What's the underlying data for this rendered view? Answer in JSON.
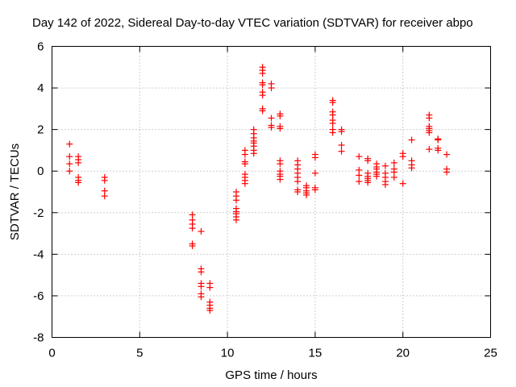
{
  "chart_data": {
    "type": "scatter",
    "title": "Day 142 of 2022, Sidereal Day-to-day VTEC variation (SDTVAR) for receiver abpo",
    "xlabel": "GPS time / hours",
    "ylabel": "SDTVAR / TECUs",
    "xlim": [
      0,
      25
    ],
    "ylim": [
      -8,
      6
    ],
    "xticks": [
      0,
      5,
      10,
      15,
      20,
      25
    ],
    "yticks": [
      -8,
      -6,
      -4,
      -2,
      0,
      2,
      4,
      6
    ],
    "grid": true,
    "marker": "+",
    "color": "#ff0000",
    "series": [
      {
        "name": "SDTVAR",
        "points": [
          [
            1.0,
            1.3
          ],
          [
            1.0,
            0.7
          ],
          [
            1.0,
            0.35
          ],
          [
            1.0,
            0.0
          ],
          [
            1.5,
            0.7
          ],
          [
            1.5,
            0.55
          ],
          [
            1.5,
            0.4
          ],
          [
            1.5,
            -0.3
          ],
          [
            1.5,
            -0.45
          ],
          [
            1.5,
            -0.55
          ],
          [
            3.0,
            -0.3
          ],
          [
            3.0,
            -0.45
          ],
          [
            3.0,
            -0.95
          ],
          [
            3.0,
            -1.2
          ],
          [
            8.0,
            -2.1
          ],
          [
            8.0,
            -2.35
          ],
          [
            8.0,
            -2.55
          ],
          [
            8.0,
            -2.75
          ],
          [
            8.0,
            -3.5
          ],
          [
            8.0,
            -3.6
          ],
          [
            8.5,
            -2.9
          ],
          [
            8.5,
            -4.7
          ],
          [
            8.5,
            -4.85
          ],
          [
            8.5,
            -5.4
          ],
          [
            8.5,
            -5.55
          ],
          [
            8.5,
            -5.9
          ],
          [
            8.5,
            -6.05
          ],
          [
            9.0,
            -5.4
          ],
          [
            9.0,
            -5.6
          ],
          [
            9.0,
            -6.3
          ],
          [
            9.0,
            -6.45
          ],
          [
            9.0,
            -6.6
          ],
          [
            9.0,
            -6.7
          ],
          [
            10.5,
            -1.0
          ],
          [
            10.5,
            -1.2
          ],
          [
            10.5,
            -1.4
          ],
          [
            10.5,
            -1.8
          ],
          [
            10.5,
            -1.95
          ],
          [
            10.5,
            -2.05
          ],
          [
            10.5,
            -2.2
          ],
          [
            10.5,
            -2.35
          ],
          [
            11.0,
            1.0
          ],
          [
            11.0,
            0.8
          ],
          [
            11.0,
            0.45
          ],
          [
            11.0,
            0.35
          ],
          [
            11.0,
            -0.15
          ],
          [
            11.0,
            -0.3
          ],
          [
            11.0,
            -0.45
          ],
          [
            11.0,
            -0.6
          ],
          [
            11.5,
            2.0
          ],
          [
            11.5,
            1.8
          ],
          [
            11.5,
            1.6
          ],
          [
            11.5,
            1.45
          ],
          [
            11.5,
            1.35
          ],
          [
            11.5,
            1.2
          ],
          [
            11.5,
            1.0
          ],
          [
            11.5,
            0.85
          ],
          [
            12.0,
            5.0
          ],
          [
            12.0,
            4.85
          ],
          [
            12.0,
            4.7
          ],
          [
            12.0,
            4.25
          ],
          [
            12.0,
            4.15
          ],
          [
            12.0,
            3.8
          ],
          [
            12.0,
            3.65
          ],
          [
            12.0,
            3.0
          ],
          [
            12.0,
            2.9
          ],
          [
            12.5,
            4.2
          ],
          [
            12.5,
            4.0
          ],
          [
            12.5,
            2.55
          ],
          [
            12.5,
            2.2
          ],
          [
            12.5,
            2.1
          ],
          [
            13.0,
            2.75
          ],
          [
            13.0,
            2.65
          ],
          [
            13.0,
            2.15
          ],
          [
            13.0,
            2.05
          ],
          [
            13.0,
            0.5
          ],
          [
            13.0,
            0.35
          ],
          [
            13.0,
            0.0
          ],
          [
            13.0,
            -0.15
          ],
          [
            13.0,
            -0.25
          ],
          [
            13.0,
            -0.4
          ],
          [
            14.0,
            0.5
          ],
          [
            14.0,
            0.3
          ],
          [
            14.0,
            0.1
          ],
          [
            14.0,
            -0.1
          ],
          [
            14.0,
            -0.3
          ],
          [
            14.0,
            -0.5
          ],
          [
            14.0,
            -0.9
          ],
          [
            14.0,
            -1.0
          ],
          [
            14.5,
            -0.7
          ],
          [
            14.5,
            -0.8
          ],
          [
            14.5,
            -0.95
          ],
          [
            14.5,
            -1.05
          ],
          [
            14.5,
            -1.15
          ],
          [
            15.0,
            0.8
          ],
          [
            15.0,
            0.65
          ],
          [
            15.0,
            -0.1
          ],
          [
            15.0,
            -0.8
          ],
          [
            15.0,
            -0.9
          ],
          [
            16.0,
            3.4
          ],
          [
            16.0,
            3.3
          ],
          [
            16.0,
            2.85
          ],
          [
            16.0,
            2.7
          ],
          [
            16.0,
            2.45
          ],
          [
            16.0,
            2.3
          ],
          [
            16.0,
            2.0
          ],
          [
            16.0,
            1.85
          ],
          [
            16.5,
            2.0
          ],
          [
            16.5,
            1.9
          ],
          [
            16.5,
            1.25
          ],
          [
            16.5,
            0.95
          ],
          [
            17.5,
            0.7
          ],
          [
            17.5,
            0.05
          ],
          [
            17.5,
            -0.2
          ],
          [
            17.5,
            -0.5
          ],
          [
            18.0,
            0.6
          ],
          [
            18.0,
            0.5
          ],
          [
            18.0,
            -0.1
          ],
          [
            18.0,
            -0.25
          ],
          [
            18.0,
            -0.35
          ],
          [
            18.0,
            -0.45
          ],
          [
            18.0,
            -0.55
          ],
          [
            18.5,
            0.35
          ],
          [
            18.5,
            0.2
          ],
          [
            18.5,
            0.1
          ],
          [
            18.5,
            -0.05
          ],
          [
            18.5,
            -0.15
          ],
          [
            18.5,
            -0.25
          ],
          [
            19.0,
            0.25
          ],
          [
            19.0,
            -0.1
          ],
          [
            19.0,
            -0.3
          ],
          [
            19.0,
            -0.5
          ],
          [
            19.0,
            -0.65
          ],
          [
            19.5,
            0.4
          ],
          [
            19.5,
            0.1
          ],
          [
            19.5,
            -0.05
          ],
          [
            19.5,
            -0.3
          ],
          [
            20.0,
            0.85
          ],
          [
            20.0,
            0.7
          ],
          [
            20.0,
            -0.6
          ],
          [
            20.5,
            1.5
          ],
          [
            20.5,
            0.5
          ],
          [
            20.5,
            0.3
          ],
          [
            20.5,
            0.15
          ],
          [
            21.5,
            2.7
          ],
          [
            21.5,
            2.55
          ],
          [
            21.5,
            2.15
          ],
          [
            21.5,
            2.05
          ],
          [
            21.5,
            1.95
          ],
          [
            21.5,
            1.85
          ],
          [
            21.5,
            1.05
          ],
          [
            22.0,
            1.55
          ],
          [
            22.0,
            1.5
          ],
          [
            22.0,
            1.1
          ],
          [
            22.0,
            1.0
          ],
          [
            22.5,
            0.8
          ],
          [
            22.5,
            0.1
          ],
          [
            22.5,
            -0.05
          ]
        ]
      }
    ]
  }
}
